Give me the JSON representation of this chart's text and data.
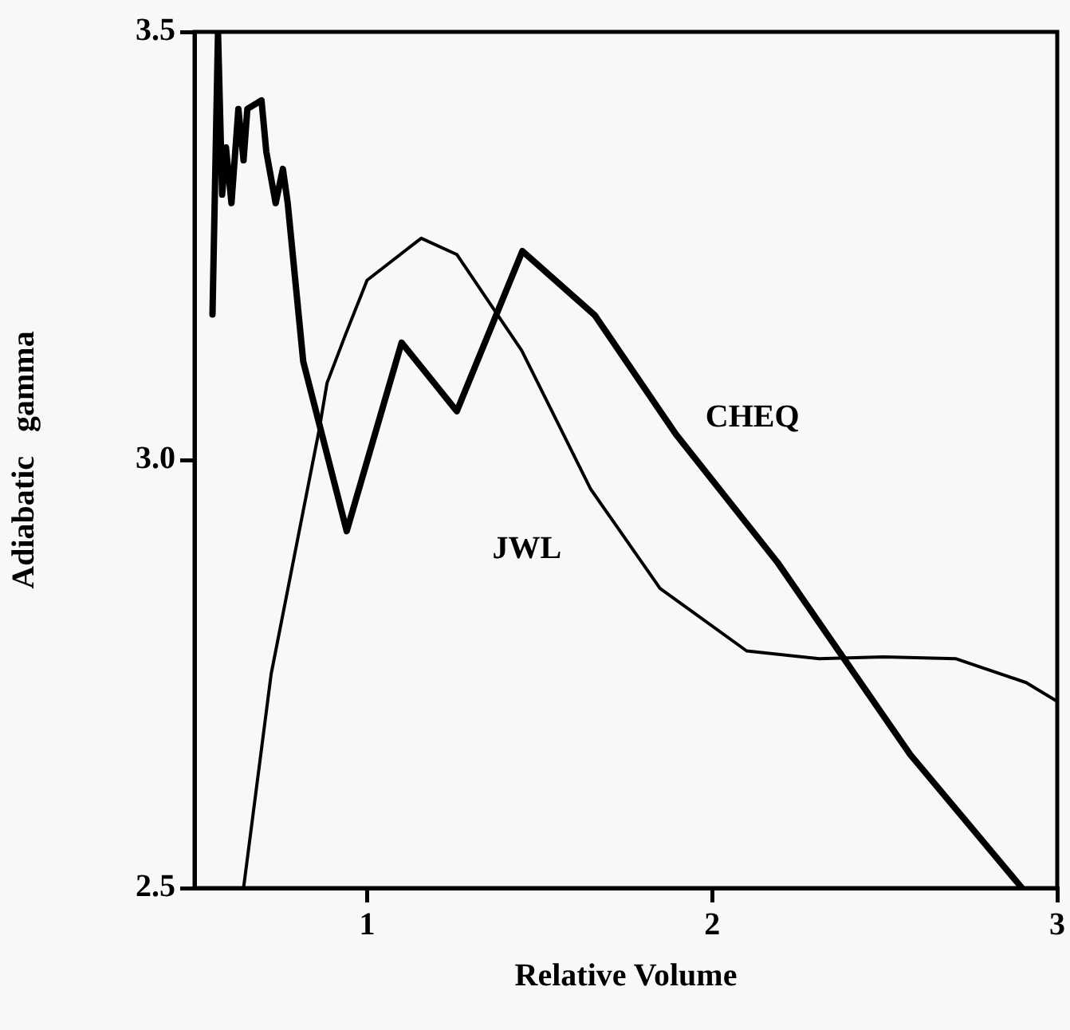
{
  "chart_data": {
    "type": "line",
    "xlabel": "Relative Volume",
    "ylabel": "Adiabatic   gamma",
    "xlim": [
      0.5,
      3
    ],
    "ylim": [
      2.5,
      3.5
    ],
    "xticks": [
      1,
      2,
      3
    ],
    "yticks": [
      {
        "value": 2.5,
        "label": "2.5"
      },
      {
        "value": 3,
        "label": "3.0"
      },
      {
        "value": 3.5,
        "label": "3.5"
      }
    ],
    "grid": false,
    "legend": false,
    "marker": "none",
    "line_style": "solid",
    "series": [
      {
        "name": "CHEQ",
        "color": "#000000",
        "x": [
          0.552,
          0.568,
          0.58,
          0.591,
          0.607,
          0.627,
          0.642,
          0.653,
          0.694,
          0.708,
          0.735,
          0.756,
          0.77,
          0.815,
          0.941,
          1.1,
          1.26,
          1.45,
          1.66,
          1.895,
          2.19,
          2.574,
          2.898
        ],
        "values": [
          3.17,
          3.5,
          3.31,
          3.365,
          3.3,
          3.41,
          3.35,
          3.41,
          3.42,
          3.36,
          3.3,
          3.34,
          3.3,
          3.115,
          2.917,
          3.137,
          3.057,
          3.244,
          3.169,
          3.03,
          2.88,
          2.656,
          2.5
        ]
      },
      {
        "name": "JWL",
        "color": "#000000",
        "x": [
          0.642,
          0.722,
          0.8,
          0.861,
          0.884,
          0.938,
          1.0,
          1.157,
          1.26,
          1.448,
          1.648,
          1.849,
          2.1,
          2.31,
          2.497,
          2.705,
          2.91,
          3.0
        ],
        "values": [
          2.5,
          2.75,
          2.91,
          3.035,
          3.09,
          3.147,
          3.21,
          3.259,
          3.24,
          3.128,
          2.966,
          2.85,
          2.777,
          2.768,
          2.77,
          2.768,
          2.74,
          2.718
        ]
      }
    ]
  }
}
